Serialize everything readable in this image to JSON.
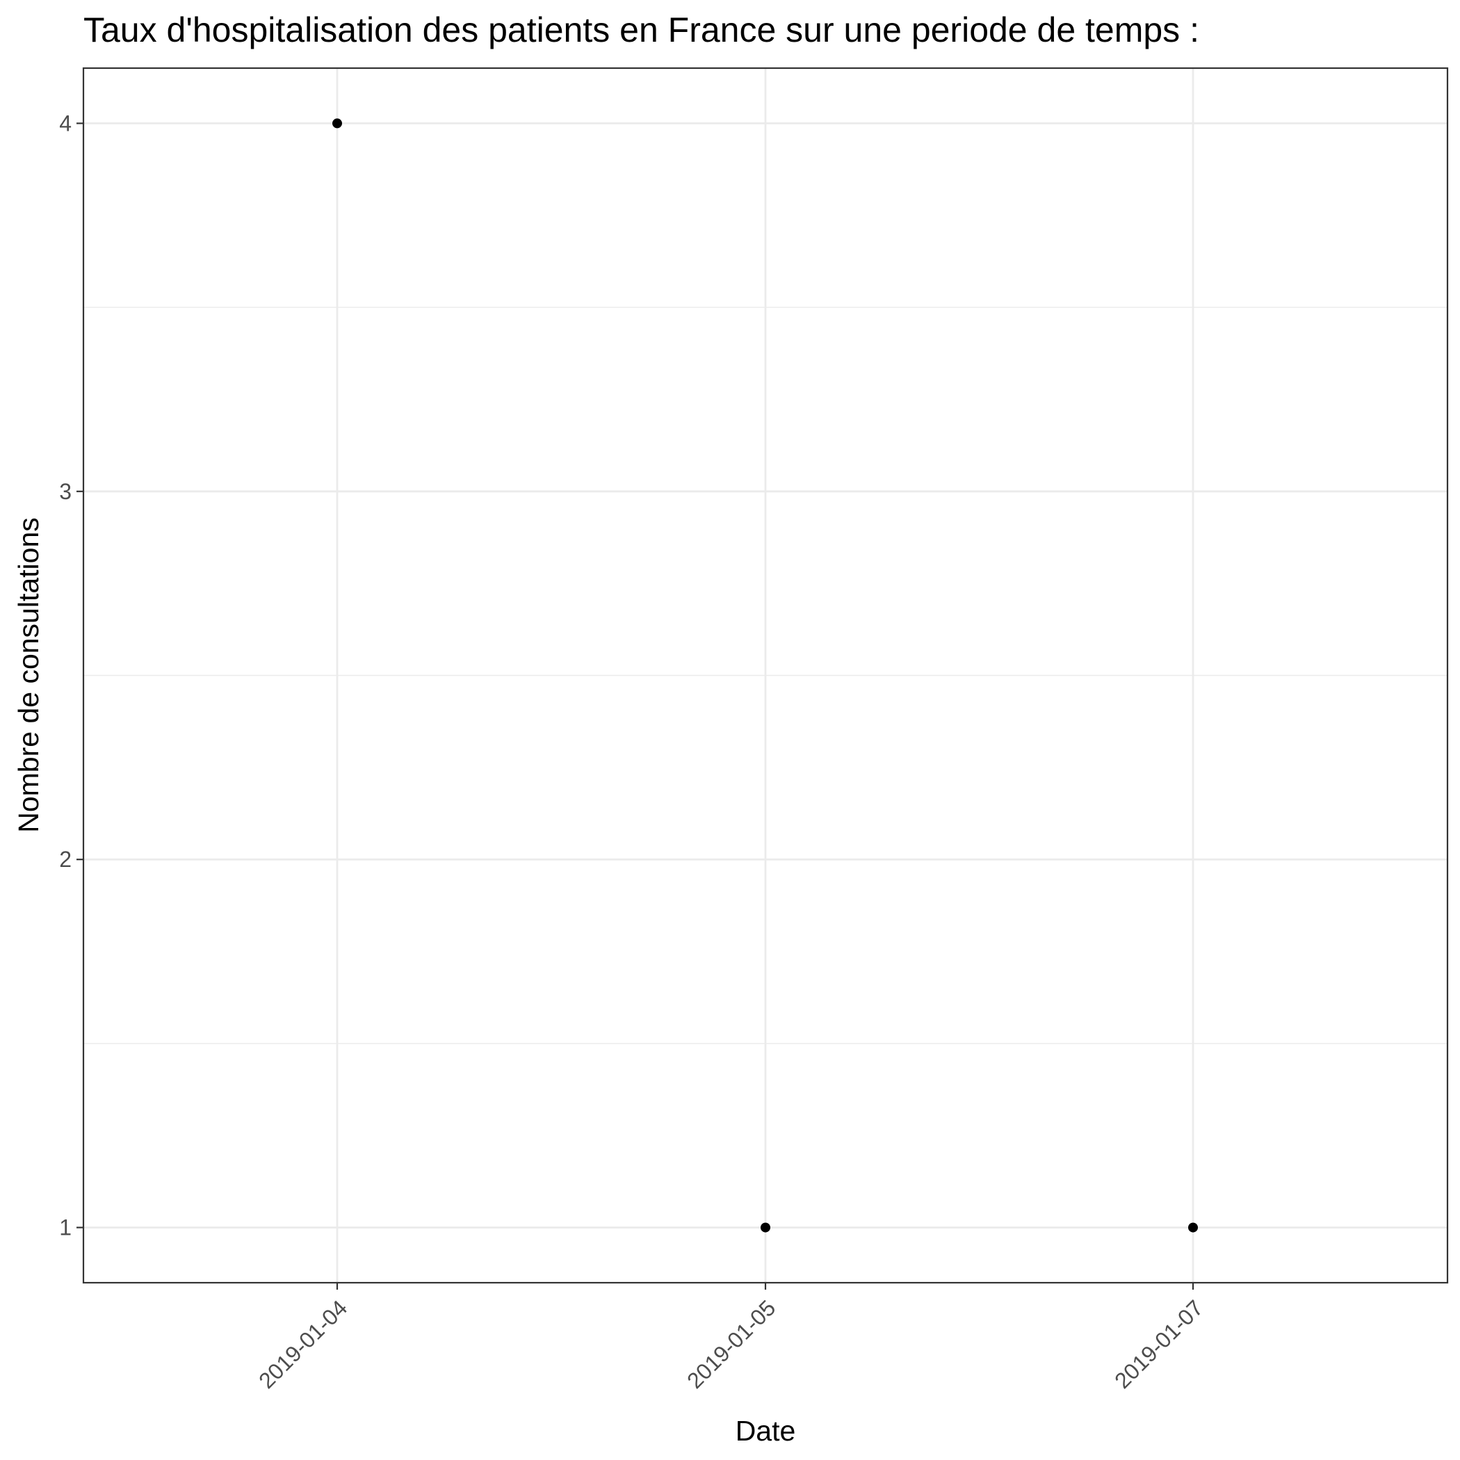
{
  "chart_data": {
    "type": "scatter",
    "title": "Taux d'hospitalisation des patients en France sur une periode de temps :",
    "xlabel": "Date",
    "ylabel": "Nombre de consultations",
    "x_is_discrete": true,
    "categories": [
      "2019-01-04",
      "2019-01-05",
      "2019-01-07"
    ],
    "series": [
      {
        "values": [
          4,
          1,
          1
        ]
      }
    ],
    "yticks": [
      1,
      2,
      3,
      4
    ],
    "ylim": [
      0.85,
      4.15
    ],
    "grid": true,
    "legend": "none",
    "colors": {
      "point": "#000000",
      "grid": "#ebebeb",
      "panel_border": "#333333",
      "tick_label": "#4d4d4d"
    }
  }
}
